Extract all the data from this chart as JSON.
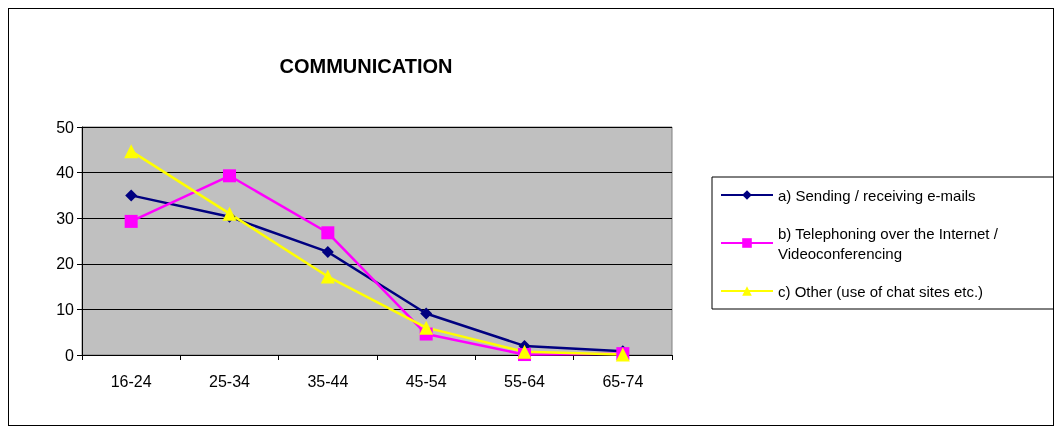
{
  "chart_data": {
    "type": "line",
    "title": "COMMUNICATION",
    "categories": [
      "16-24",
      "25-34",
      "35-44",
      "45-54",
      "55-64",
      "65-74"
    ],
    "series": [
      {
        "name": "a) Sending / receiving e-mails",
        "color": "#000080",
        "marker": "diamond",
        "values": [
          35.0,
          30.3,
          22.6,
          9.1,
          2.0,
          0.8
        ]
      },
      {
        "name": "b) Telephoning over the Internet / Videoconferencing",
        "color": "#ff00ff",
        "marker": "square",
        "values": [
          29.3,
          39.3,
          26.8,
          4.6,
          0.1,
          0.3
        ]
      },
      {
        "name": "c) Other (use of chat sites etc.)",
        "color": "#ffff00",
        "marker": "triangle",
        "values": [
          44.7,
          31.0,
          17.2,
          6.0,
          0.7,
          0.1
        ]
      }
    ],
    "ylim": [
      0,
      50
    ],
    "yticks": [
      0,
      10,
      20,
      30,
      40,
      50
    ],
    "grid": "y",
    "legend": "right",
    "line_style": "solid"
  }
}
